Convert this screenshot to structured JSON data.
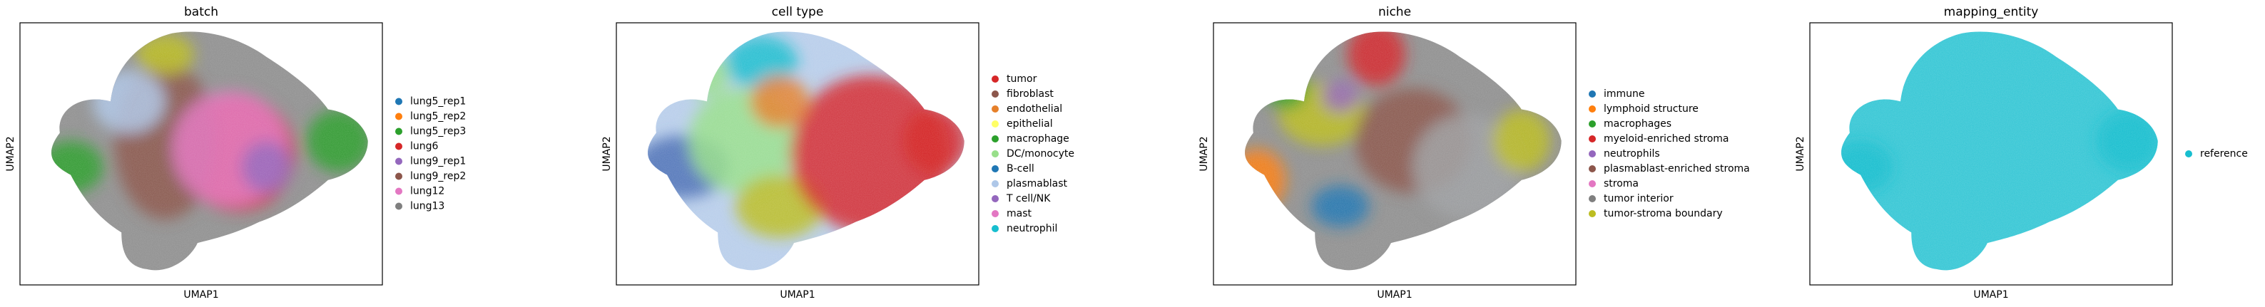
{
  "figure": {
    "background": "#ffffff"
  },
  "chart_data": [
    {
      "type": "scatter",
      "title": "batch",
      "xlabel": "UMAP1",
      "ylabel": "UMAP2",
      "grid": false,
      "legend_placement": "right",
      "legend": [
        {
          "label": "lung5_rep1",
          "color": "#1f77b4"
        },
        {
          "label": "lung5_rep2",
          "color": "#ff7f0e"
        },
        {
          "label": "lung5_rep3",
          "color": "#2ca02c"
        },
        {
          "label": "lung6",
          "color": "#d62728"
        },
        {
          "label": "lung9_rep1",
          "color": "#9467bd"
        },
        {
          "label": "lung9_rep2",
          "color": "#8c564b"
        },
        {
          "label": "lung12",
          "color": "#e377c2"
        },
        {
          "label": "lung13",
          "color": "#7f7f7f"
        }
      ],
      "blobs": [
        {
          "x": 0.5,
          "y": 0.5,
          "rx": 0.42,
          "ry": 0.4,
          "color": "#7f7f7f"
        },
        {
          "x": 0.14,
          "y": 0.55,
          "rx": 0.09,
          "ry": 0.1,
          "color": "#2ca02c"
        },
        {
          "x": 0.88,
          "y": 0.45,
          "rx": 0.09,
          "ry": 0.12,
          "color": "#2ca02c"
        },
        {
          "x": 0.6,
          "y": 0.5,
          "rx": 0.16,
          "ry": 0.22,
          "color": "#d62728"
        },
        {
          "x": 0.4,
          "y": 0.45,
          "rx": 0.14,
          "ry": 0.3,
          "color": "#8c564b"
        },
        {
          "x": 0.58,
          "y": 0.48,
          "rx": 0.16,
          "ry": 0.22,
          "color": "#e377c2"
        },
        {
          "x": 0.68,
          "y": 0.55,
          "rx": 0.07,
          "ry": 0.1,
          "color": "#9467bd"
        },
        {
          "x": 0.4,
          "y": 0.12,
          "rx": 0.08,
          "ry": 0.08,
          "color": "#bcbd22"
        },
        {
          "x": 0.3,
          "y": 0.3,
          "rx": 0.1,
          "ry": 0.12,
          "color": "#aec7e8"
        }
      ]
    },
    {
      "type": "scatter",
      "title": "cell type",
      "xlabel": "UMAP1",
      "ylabel": "UMAP2",
      "grid": false,
      "legend_placement": "right",
      "legend": [
        {
          "label": "tumor",
          "color": "#d62728"
        },
        {
          "label": "fibroblast",
          "color": "#8c564b"
        },
        {
          "label": "endothelial",
          "color": "#e6802a"
        },
        {
          "label": "epithelial",
          "color": "#ffff66"
        },
        {
          "label": "macrophage",
          "color": "#2ca02c"
        },
        {
          "label": "DC/monocyte",
          "color": "#98df8a"
        },
        {
          "label": "B-cell",
          "color": "#1f77b4"
        },
        {
          "label": "plasmablast",
          "color": "#aec7e8"
        },
        {
          "label": "T cell/NK",
          "color": "#9467bd"
        },
        {
          "label": "mast",
          "color": "#e377c2"
        },
        {
          "label": "neutrophil",
          "color": "#17becf"
        }
      ],
      "blobs": [
        {
          "x": 0.5,
          "y": 0.5,
          "rx": 0.42,
          "ry": 0.4,
          "color": "#aec7e8"
        },
        {
          "x": 0.18,
          "y": 0.55,
          "rx": 0.13,
          "ry": 0.12,
          "color": "#4a6fb5"
        },
        {
          "x": 0.35,
          "y": 0.45,
          "rx": 0.15,
          "ry": 0.2,
          "color": "#98df8a"
        },
        {
          "x": 0.45,
          "y": 0.7,
          "rx": 0.12,
          "ry": 0.12,
          "color": "#bcbd22"
        },
        {
          "x": 0.7,
          "y": 0.5,
          "rx": 0.22,
          "ry": 0.3,
          "color": "#d62728"
        },
        {
          "x": 0.88,
          "y": 0.45,
          "rx": 0.09,
          "ry": 0.13,
          "color": "#d62728"
        },
        {
          "x": 0.4,
          "y": 0.15,
          "rx": 0.1,
          "ry": 0.1,
          "color": "#17becf"
        },
        {
          "x": 0.25,
          "y": 0.2,
          "rx": 0.06,
          "ry": 0.08,
          "color": "#98df8a"
        },
        {
          "x": 0.45,
          "y": 0.3,
          "rx": 0.08,
          "ry": 0.1,
          "color": "#e6802a"
        }
      ]
    },
    {
      "type": "scatter",
      "title": "niche",
      "xlabel": "UMAP1",
      "ylabel": "UMAP2",
      "grid": false,
      "legend_placement": "right",
      "legend": [
        {
          "label": "immune",
          "color": "#1f77b4"
        },
        {
          "label": "lymphoid structure",
          "color": "#ff7f0e"
        },
        {
          "label": "macrophages",
          "color": "#2ca02c"
        },
        {
          "label": "myeloid-enriched stroma",
          "color": "#d62728"
        },
        {
          "label": "neutrophils",
          "color": "#9467bd"
        },
        {
          "label": "plasmablast-enriched stroma",
          "color": "#8c564b"
        },
        {
          "label": "stroma",
          "color": "#e377c2"
        },
        {
          "label": "tumor interior",
          "color": "#7f7f7f"
        },
        {
          "label": "tumor-stroma boundary",
          "color": "#bcbd22"
        }
      ],
      "blobs": [
        {
          "x": 0.5,
          "y": 0.5,
          "rx": 0.42,
          "ry": 0.4,
          "color": "#7f7f7f"
        },
        {
          "x": 0.12,
          "y": 0.6,
          "rx": 0.08,
          "ry": 0.12,
          "color": "#ff7f0e"
        },
        {
          "x": 0.45,
          "y": 0.12,
          "rx": 0.08,
          "ry": 0.12,
          "color": "#d62728"
        },
        {
          "x": 0.3,
          "y": 0.35,
          "rx": 0.12,
          "ry": 0.12,
          "color": "#bcbd22"
        },
        {
          "x": 0.55,
          "y": 0.45,
          "rx": 0.16,
          "ry": 0.2,
          "color": "#8c564b"
        },
        {
          "x": 0.7,
          "y": 0.55,
          "rx": 0.15,
          "ry": 0.2,
          "color": "#9ea0a2"
        },
        {
          "x": 0.35,
          "y": 0.7,
          "rx": 0.08,
          "ry": 0.08,
          "color": "#1f77b4"
        },
        {
          "x": 0.2,
          "y": 0.25,
          "rx": 0.06,
          "ry": 0.08,
          "color": "#2ca02c"
        },
        {
          "x": 0.85,
          "y": 0.45,
          "rx": 0.08,
          "ry": 0.12,
          "color": "#bcbd22"
        },
        {
          "x": 0.35,
          "y": 0.28,
          "rx": 0.05,
          "ry": 0.06,
          "color": "#9467bd"
        }
      ]
    },
    {
      "type": "scatter",
      "title": "mapping_entity",
      "xlabel": "UMAP1",
      "ylabel": "UMAP2",
      "grid": false,
      "legend_placement": "right",
      "legend": [
        {
          "label": "reference",
          "color": "#17becf"
        }
      ],
      "blobs": [
        {
          "x": 0.5,
          "y": 0.5,
          "rx": 0.42,
          "ry": 0.4,
          "color": "#17becf"
        },
        {
          "x": 0.14,
          "y": 0.55,
          "rx": 0.09,
          "ry": 0.1,
          "color": "#17becf"
        },
        {
          "x": 0.88,
          "y": 0.45,
          "rx": 0.09,
          "ry": 0.12,
          "color": "#17becf"
        }
      ]
    }
  ]
}
